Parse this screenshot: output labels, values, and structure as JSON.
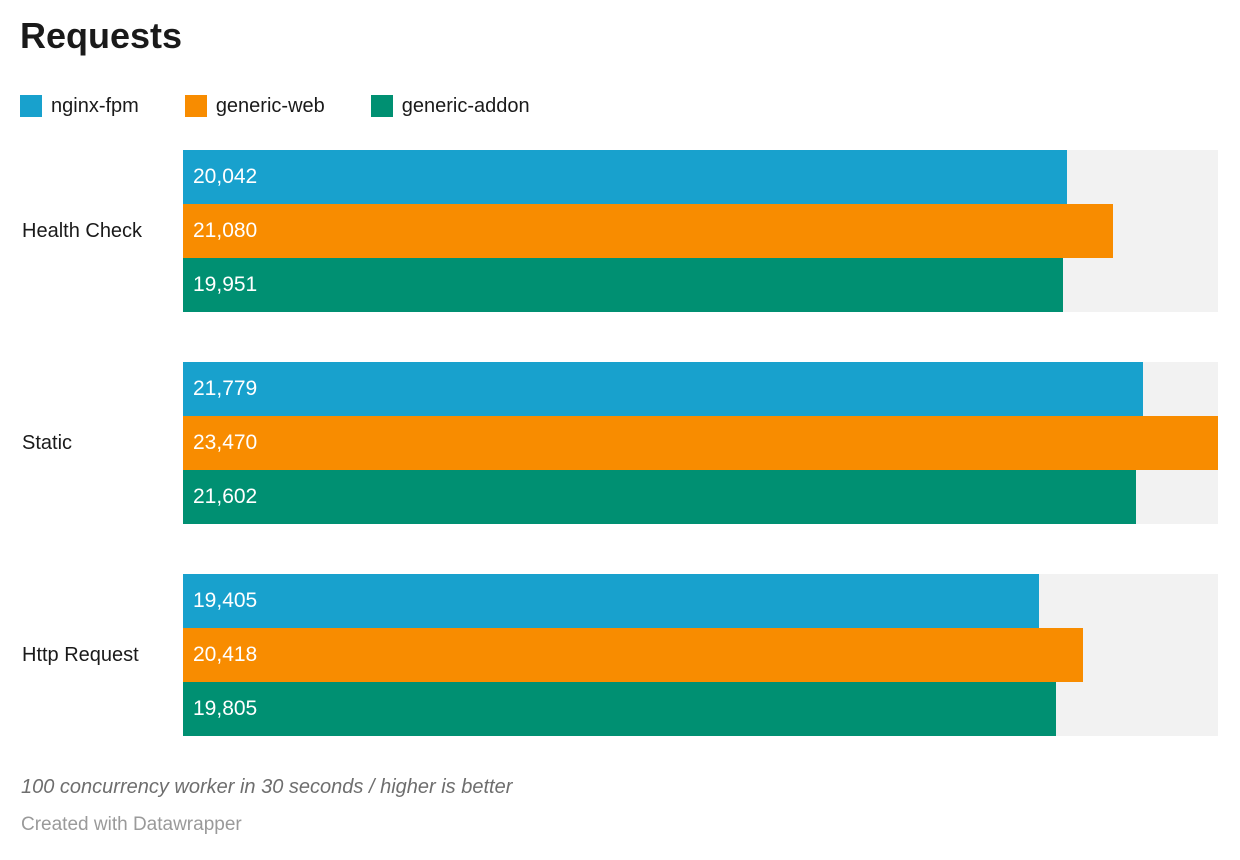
{
  "title": "Requests",
  "chart_data": {
    "type": "bar",
    "orientation": "horizontal",
    "title": "Requests",
    "categories": [
      "Health Check",
      "Static",
      "Http Request"
    ],
    "series": [
      {
        "name": "nginx-fpm",
        "color": "#18A1CD",
        "values": [
          20042,
          21779,
          19405
        ]
      },
      {
        "name": "generic-web",
        "color": "#F88C00",
        "values": [
          21080,
          23470,
          20418
        ]
      },
      {
        "name": "generic-addon",
        "color": "#009072",
        "values": [
          19951,
          21602,
          19805
        ]
      }
    ],
    "value_labels": [
      [
        "20,042",
        "21,779",
        "19,405"
      ],
      [
        "21,080",
        "23,470",
        "20,418"
      ],
      [
        "19,951",
        "21,602",
        "19,805"
      ]
    ],
    "xlim": [
      0,
      23470
    ],
    "grid": false,
    "legend_position": "top",
    "value_label_position": "inside-start",
    "track_color": "#F2F2F2",
    "bar_text_color": "#FFFFFF"
  },
  "footer": {
    "note": "100 concurrency worker in 30 seconds / higher is better",
    "attribution": "Created with Datawrapper"
  }
}
